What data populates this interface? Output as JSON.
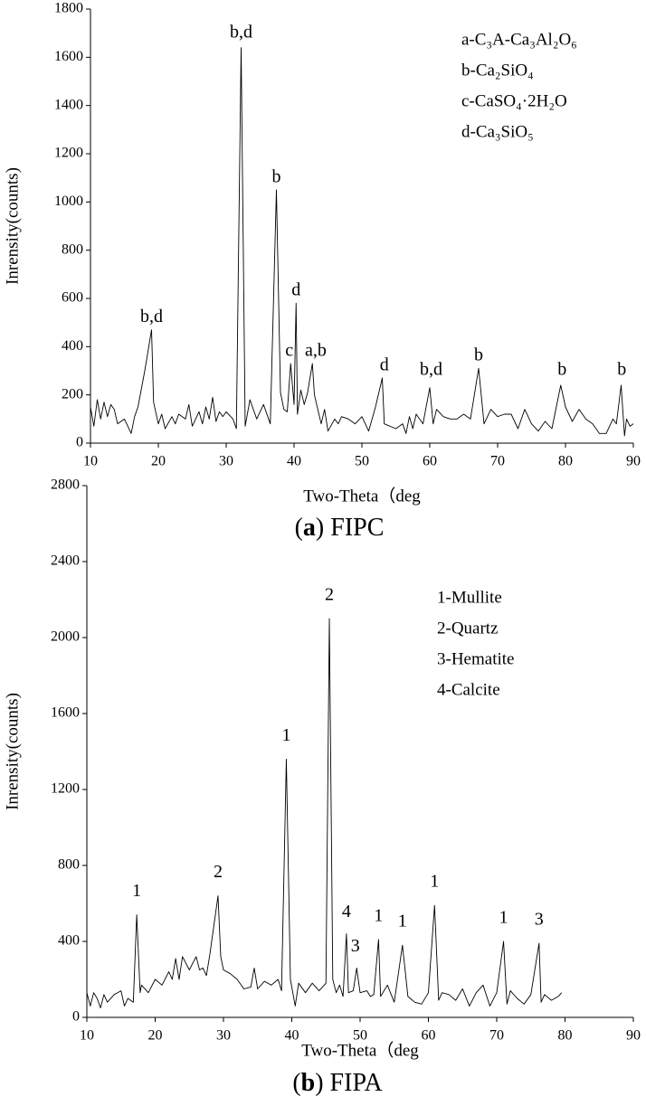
{
  "chart_data": [
    {
      "type": "line",
      "color": "#000000",
      "x_label": "Two-Theta（deg",
      "y_label": "Inrensity(counts)",
      "caption": [
        "(",
        "a",
        ") FIPC"
      ],
      "key": [
        "a-C₃A-Ca₃Al₂O₆",
        "b-Ca₂SiO₄",
        "c-CaSO₄·2H₂O",
        "d-Ca₃SiO₅"
      ],
      "xlim": [
        10,
        90
      ],
      "xticks": [
        10,
        20,
        30,
        40,
        50,
        60,
        70,
        80,
        90
      ],
      "ylim": [
        0,
        1800
      ],
      "yticks": [
        0,
        200,
        400,
        600,
        800,
        1000,
        1200,
        1400,
        1600,
        1800
      ],
      "x": [
        10,
        10.5,
        11,
        11.5,
        12,
        12.5,
        13,
        13.5,
        14,
        15,
        16,
        16.5,
        17,
        18,
        19,
        19.3,
        20,
        20.5,
        21,
        22,
        22.5,
        23,
        24,
        24.5,
        25,
        26,
        26.5,
        27,
        27.5,
        28,
        28.5,
        29,
        29.5,
        30,
        31,
        31.5,
        32.2,
        32.8,
        33.5,
        34.5,
        35.5,
        36.5,
        37.4,
        38,
        38.5,
        39,
        39.5,
        40,
        40.3,
        40.5,
        41,
        41.5,
        42,
        42.7,
        43,
        44,
        44.5,
        45,
        46,
        46.5,
        47,
        48,
        49,
        50,
        51,
        52,
        53,
        53.3,
        55,
        56,
        56.5,
        57,
        57.5,
        58,
        59,
        60,
        60.5,
        61,
        62,
        63,
        64,
        65,
        66,
        67.2,
        68,
        69,
        70,
        71,
        72,
        73,
        74,
        75,
        76,
        77,
        78,
        79.3,
        80,
        81,
        82,
        83,
        84,
        85,
        86,
        87,
        87.5,
        88.2,
        88.7,
        89,
        89.5,
        90
      ],
      "values": [
        150,
        70,
        180,
        100,
        170,
        110,
        160,
        140,
        80,
        100,
        40,
        110,
        150,
        300,
        470,
        170,
        80,
        120,
        60,
        110,
        80,
        120,
        100,
        160,
        70,
        130,
        80,
        150,
        100,
        190,
        90,
        130,
        110,
        130,
        100,
        60,
        1640,
        70,
        180,
        100,
        160,
        80,
        1050,
        210,
        140,
        130,
        330,
        160,
        580,
        120,
        220,
        160,
        210,
        330,
        200,
        80,
        140,
        50,
        100,
        80,
        110,
        100,
        80,
        110,
        50,
        150,
        270,
        80,
        60,
        80,
        40,
        110,
        60,
        120,
        80,
        230,
        80,
        140,
        110,
        100,
        100,
        120,
        100,
        310,
        80,
        140,
        110,
        120,
        120,
        60,
        140,
        80,
        50,
        90,
        60,
        240,
        150,
        90,
        140,
        100,
        80,
        40,
        40,
        100,
        80,
        240,
        30,
        100,
        70,
        80
      ],
      "annotations": [
        {
          "text": "b,d",
          "x": 19,
          "y": 520
        },
        {
          "text": "b,d",
          "x": 32.2,
          "y": 1700
        },
        {
          "text": "b",
          "x": 37.4,
          "y": 1100
        },
        {
          "text": "d",
          "x": 40.3,
          "y": 630
        },
        {
          "text": "c",
          "x": 39.3,
          "y": 380
        },
        {
          "text": "a,b",
          "x": 43.2,
          "y": 380
        },
        {
          "text": "d",
          "x": 53.3,
          "y": 320
        },
        {
          "text": "b,d",
          "x": 60.2,
          "y": 300
        },
        {
          "text": "b",
          "x": 67.2,
          "y": 360
        },
        {
          "text": "b",
          "x": 79.5,
          "y": 300
        },
        {
          "text": "b",
          "x": 88.3,
          "y": 300
        }
      ]
    },
    {
      "type": "line",
      "color": "#000000",
      "x_label": "Two-Theta（deg",
      "y_label": "Inrensity(counts)",
      "caption": [
        "(",
        "b",
        ") FIPA"
      ],
      "key": [
        "1-Mullite",
        "2-Quartz",
        "3-Hematite",
        "4-Calcite"
      ],
      "xlim": [
        10,
        90
      ],
      "xticks": [
        10,
        20,
        30,
        40,
        50,
        60,
        70,
        80,
        90
      ],
      "ylim": [
        0,
        2800
      ],
      "yticks": [
        0,
        400,
        800,
        1200,
        1600,
        2000,
        2400,
        2800
      ],
      "x": [
        10,
        10.5,
        11,
        11.5,
        12,
        12.5,
        13,
        14,
        15,
        15.5,
        16,
        16.8,
        17.3,
        17.8,
        18,
        19,
        20,
        21,
        22,
        22.5,
        23,
        23.5,
        24,
        25,
        26,
        26.5,
        27,
        27.5,
        28,
        29.2,
        29.6,
        30,
        31,
        32,
        33,
        34,
        34.5,
        35,
        36,
        37,
        38,
        38.5,
        39.2,
        39.8,
        40.5,
        41,
        42,
        43,
        44,
        45,
        45.5,
        46,
        46.5,
        47,
        47.5,
        48,
        48.3,
        49,
        49.5,
        50,
        51,
        51.5,
        52,
        52.7,
        53,
        54,
        55,
        56.2,
        57,
        58,
        59,
        60,
        60.9,
        61.5,
        62,
        63,
        64,
        65,
        66,
        67,
        68,
        69,
        70,
        71,
        71.5,
        72,
        73,
        74,
        75,
        76.2,
        76.5,
        77,
        78,
        79,
        79.5
      ],
      "values": [
        130,
        60,
        130,
        100,
        50,
        120,
        80,
        120,
        140,
        60,
        100,
        80,
        540,
        130,
        170,
        130,
        200,
        170,
        240,
        200,
        310,
        200,
        320,
        250,
        320,
        250,
        260,
        220,
        330,
        640,
        320,
        250,
        230,
        200,
        150,
        160,
        260,
        150,
        190,
        170,
        200,
        140,
        1360,
        200,
        60,
        180,
        130,
        180,
        140,
        180,
        2100,
        200,
        130,
        170,
        110,
        440,
        130,
        140,
        260,
        130,
        140,
        110,
        120,
        410,
        110,
        170,
        80,
        380,
        110,
        80,
        70,
        130,
        590,
        90,
        130,
        120,
        90,
        150,
        60,
        130,
        170,
        60,
        130,
        400,
        70,
        140,
        100,
        70,
        120,
        390,
        80,
        120,
        90,
        110,
        130
      ],
      "annotations": [
        {
          "text": "1",
          "x": 17.3,
          "y": 660
        },
        {
          "text": "2",
          "x": 29.2,
          "y": 760
        },
        {
          "text": "1",
          "x": 39.2,
          "y": 1480
        },
        {
          "text": "2",
          "x": 45.5,
          "y": 2220
        },
        {
          "text": "4",
          "x": 48,
          "y": 550
        },
        {
          "text": "3",
          "x": 49.3,
          "y": 370
        },
        {
          "text": "1",
          "x": 52.7,
          "y": 530
        },
        {
          "text": "1",
          "x": 56.2,
          "y": 500
        },
        {
          "text": "1",
          "x": 60.9,
          "y": 710
        },
        {
          "text": "1",
          "x": 71,
          "y": 520
        },
        {
          "text": "3",
          "x": 76.2,
          "y": 510
        }
      ]
    }
  ]
}
